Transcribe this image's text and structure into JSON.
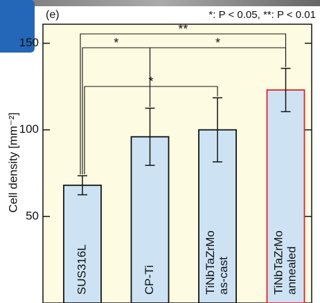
{
  "chart_data": {
    "type": "bar",
    "panel_label": "(e)",
    "note": "*: P < 0.05, **: P < 0.01",
    "y_label": "Cell density [mm⁻²]",
    "categories": [
      [
        "SUS316L"
      ],
      [
        "CP-Ti"
      ],
      [
        "TiNbTaZrMo",
        "as-cast"
      ],
      [
        "TiNbTaZrMo",
        "annealed"
      ]
    ],
    "category_colors": [
      "#111111",
      "#111111",
      "#2233cc",
      "#e0202a"
    ],
    "values": [
      68,
      96,
      100,
      123
    ],
    "errors": [
      5.5,
      16.5,
      18.5,
      12.5
    ],
    "color": "#cde3f4",
    "edge_colors": [
      "#111111",
      "#111111",
      "#111111",
      "#e0202a"
    ],
    "ylim": [
      0,
      161
    ],
    "yticks": [
      50,
      100,
      150
    ],
    "annotations": [
      "**",
      "*",
      "*",
      "*"
    ]
  }
}
